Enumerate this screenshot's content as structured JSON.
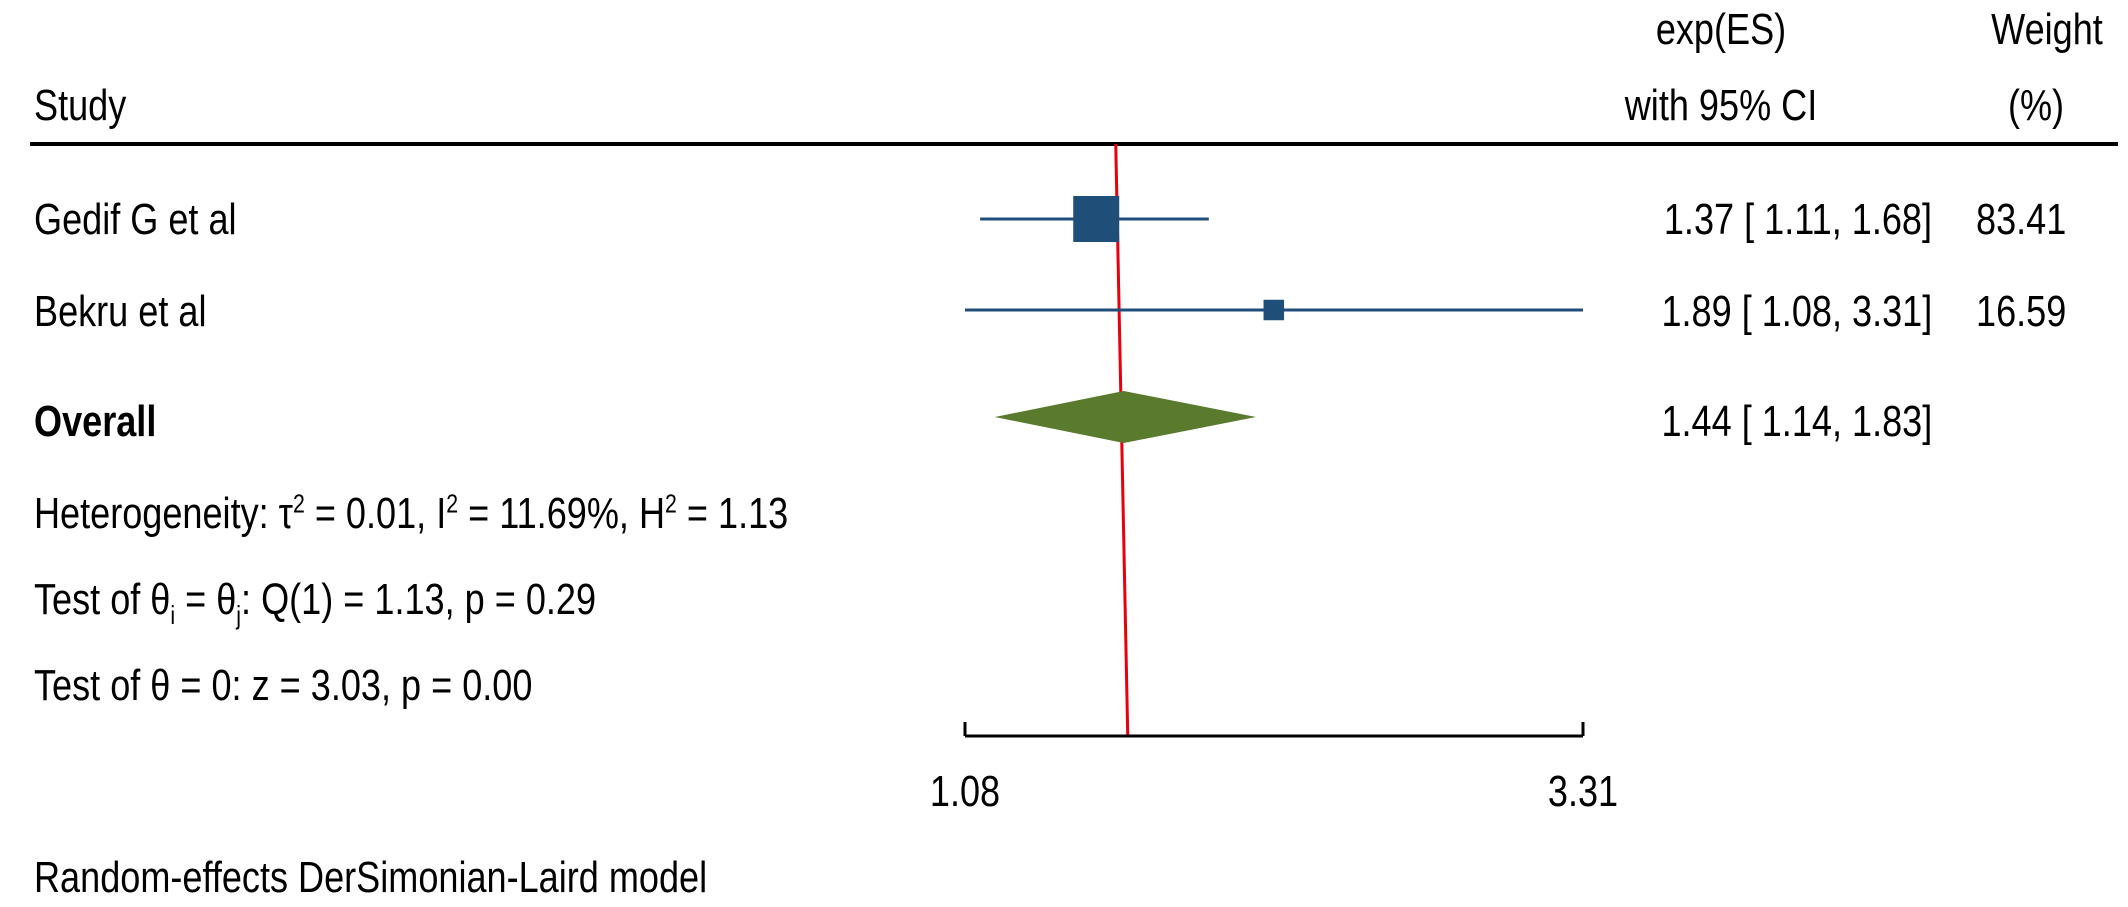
{
  "header": {
    "study": "Study",
    "es_line1": "exp(ES)",
    "es_line2": "with 95% CI",
    "weight_line1": "Weight",
    "weight_line2": "(%)"
  },
  "chart_data": {
    "type": "forest",
    "axis": {
      "scale": "log",
      "range": [
        1.08,
        3.31
      ],
      "ticks": [
        "1.08",
        "3.31"
      ]
    },
    "reference_line": 1.44,
    "studies": [
      {
        "name": "Gedif G et al",
        "es": 1.37,
        "lo": 1.11,
        "hi": 1.68,
        "ci_text": "1.37 [  1.11,  1.68]",
        "weight": 83.41,
        "weight_text": "83.41"
      },
      {
        "name": "Bekru et al",
        "es": 1.89,
        "lo": 1.08,
        "hi": 3.31,
        "ci_text": "1.89 [  1.08,  3.31]",
        "weight": 16.59,
        "weight_text": "16.59"
      }
    ],
    "overall": {
      "label": "Overall",
      "es": 1.44,
      "lo": 1.14,
      "hi": 1.83,
      "ci_text": "1.44 [  1.14,  1.83]"
    },
    "colors": {
      "study_marker": "#1f4e79",
      "overall_diamond": "#5a7a2e",
      "reference_line": "#e8000b",
      "axis": "#000000"
    }
  },
  "stats": {
    "heterogeneity": {
      "prefix": "Heterogeneity: τ",
      "sup1": "2",
      "mid1": " = 0.01, I",
      "sup2": "2",
      "mid2": " = 11.69%, H",
      "sup3": "2",
      "end": " = 1.13"
    },
    "test_ij": {
      "prefix": "Test of θ",
      "sub1": "i",
      "mid": " = θ",
      "sub2": "j",
      "end": ": Q(1) = 1.13, p = 0.29"
    },
    "test_zero": "Test of θ = 0: z = 3.03, p = 0.00"
  },
  "footer": {
    "model": "Random-effects DerSimonian-Laird model"
  }
}
